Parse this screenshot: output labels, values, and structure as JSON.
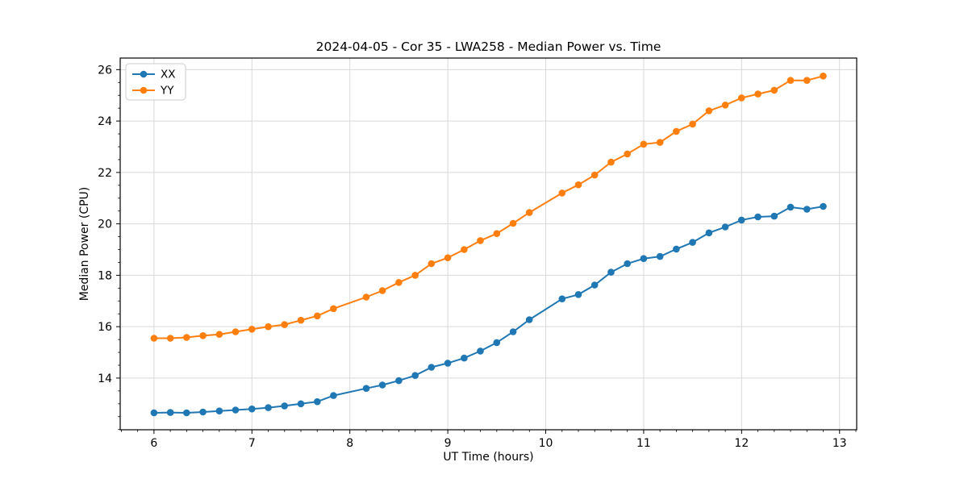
{
  "chart_data": {
    "type": "line",
    "title": "2024-04-05 - Cor 35 - LWA258 - Median Power vs. Time",
    "xlabel": "UT Time (hours)",
    "ylabel": "Median Power (CPU)",
    "xlim": [
      5.655,
      13.175
    ],
    "ylim": [
      11.99,
      26.45
    ],
    "xticks": [
      6,
      7,
      8,
      9,
      10,
      11,
      12,
      13
    ],
    "yticks": [
      14,
      16,
      18,
      20,
      22,
      24,
      26
    ],
    "x_minor_step": 0.1667,
    "y_minor_step": 0.5,
    "grid": true,
    "background": "#ffffff",
    "grid_color": "#d9d9d9",
    "spine_color": "#000000",
    "legend_position": "upper-left",
    "x": [
      6.0,
      6.167,
      6.333,
      6.5,
      6.667,
      6.833,
      7.0,
      7.167,
      7.333,
      7.5,
      7.667,
      7.833,
      8.167,
      8.333,
      8.5,
      8.667,
      8.833,
      9.0,
      9.167,
      9.333,
      9.5,
      9.667,
      9.833,
      10.167,
      10.333,
      10.5,
      10.667,
      10.833,
      11.0,
      11.167,
      11.333,
      11.5,
      11.667,
      11.833,
      12.0,
      12.167,
      12.333,
      12.5,
      12.667,
      12.833
    ],
    "series": [
      {
        "name": "XX",
        "color": "#1f77b4",
        "values": [
          12.65,
          12.66,
          12.65,
          12.68,
          12.72,
          12.76,
          12.8,
          12.85,
          12.92,
          13.0,
          13.08,
          13.32,
          13.6,
          13.73,
          13.9,
          14.1,
          14.42,
          14.58,
          14.78,
          15.05,
          15.38,
          15.8,
          16.27,
          17.08,
          17.25,
          17.62,
          18.12,
          18.45,
          18.65,
          18.73,
          19.02,
          19.28,
          19.65,
          19.88,
          20.15,
          20.27,
          20.3,
          20.65,
          20.57,
          20.68
        ]
      },
      {
        "name": "YY",
        "color": "#ff7f0e",
        "values": [
          15.55,
          15.55,
          15.58,
          15.65,
          15.7,
          15.8,
          15.9,
          16.0,
          16.08,
          16.25,
          16.42,
          16.7,
          17.15,
          17.4,
          17.72,
          18.0,
          18.45,
          18.68,
          19.0,
          19.35,
          19.62,
          20.02,
          20.44,
          21.2,
          21.52,
          21.9,
          22.4,
          22.72,
          23.1,
          23.17,
          23.6,
          23.88,
          24.4,
          24.62,
          24.9,
          25.05,
          25.2,
          25.58,
          25.58,
          25.75
        ]
      }
    ]
  }
}
